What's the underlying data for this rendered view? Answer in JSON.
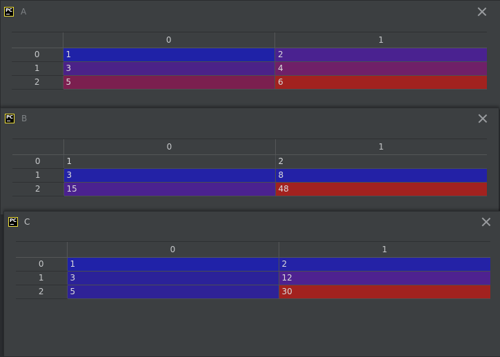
{
  "windows": [
    {
      "title": "A",
      "active": false,
      "columns": [
        "0",
        "1"
      ],
      "rows": [
        {
          "index": "0",
          "cells": [
            "1",
            "2"
          ],
          "colors": [
            "#1f22a7",
            "#4a2290"
          ]
        },
        {
          "index": "1",
          "cells": [
            "3",
            "4"
          ],
          "colors": [
            "#4b2288",
            "#6f2068"
          ]
        },
        {
          "index": "2",
          "cells": [
            "5",
            "6"
          ],
          "colors": [
            "#7b1f4f",
            "#a2221f"
          ]
        }
      ]
    },
    {
      "title": "B",
      "active": false,
      "columns": [
        "0",
        "1"
      ],
      "rows": [
        {
          "index": "0",
          "cells": [
            "1",
            "2"
          ],
          "colors": [
            "",
            ""
          ]
        },
        {
          "index": "1",
          "cells": [
            "3",
            "8"
          ],
          "colors": [
            "#2322a6",
            "#2321a6"
          ]
        },
        {
          "index": "2",
          "cells": [
            "15",
            "48"
          ],
          "colors": [
            "#4b2290",
            "#a2221f"
          ]
        }
      ]
    },
    {
      "title": "C",
      "active": true,
      "columns": [
        "0",
        "1"
      ],
      "rows": [
        {
          "index": "0",
          "cells": [
            "1",
            "2"
          ],
          "colors": [
            "#2022a8",
            "#2422a6"
          ]
        },
        {
          "index": "1",
          "cells": [
            "3",
            "12"
          ],
          "colors": [
            "#2b2299",
            "#4e2290"
          ]
        },
        {
          "index": "2",
          "cells": [
            "5",
            "30"
          ],
          "colors": [
            "#2f2297",
            "#a2221f"
          ]
        }
      ]
    }
  ],
  "icons": {
    "logo": "pycharm-logo-icon",
    "logo_text": "PC",
    "close": "close-icon"
  }
}
